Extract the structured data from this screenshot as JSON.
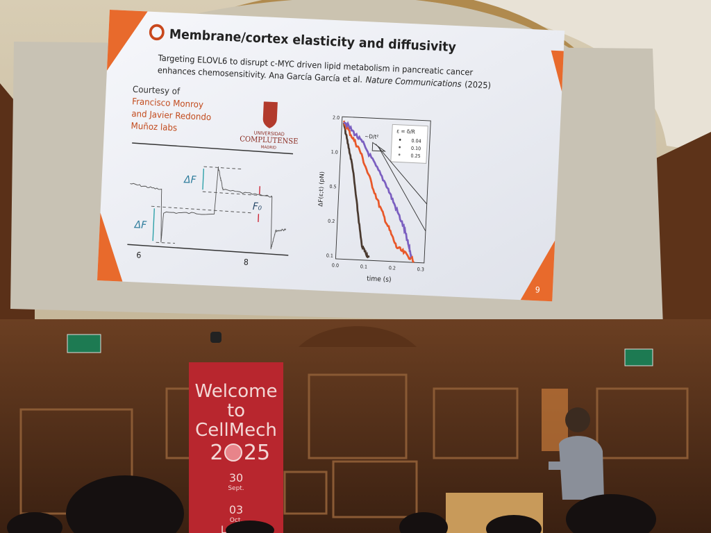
{
  "slide": {
    "title": "Membrane/cortex elasticity and diffusivity",
    "subtitle_line1": "Targeting ELOVL6 to disrupt c-MYC driven lipid metabolism in pancreatic cancer",
    "subtitle_line2": "enhances chemosensitivity. Ana García García et al.",
    "journal": "Nature Communications",
    "year": "(2025)",
    "courtesy": [
      "Courtesy of",
      "Francisco Monroy",
      "and Javier Redondo",
      "Muñoz labs"
    ],
    "logo": [
      "UNIVERSIDAD",
      "COMPLUTENSE",
      "MADRID"
    ],
    "trace_plot": {
      "labels": [
        "ΔF",
        "ΔF",
        "F₀"
      ],
      "xticks": [
        "6",
        "8"
      ]
    },
    "decay_plot": {
      "y_label": "ΔF(ε;t) (pN)",
      "x_label": "time (s)",
      "yticks": [
        "2.0",
        "1.0",
        "0.5",
        "0.2",
        "0.1"
      ],
      "xticks": [
        "0.0",
        "0.1",
        "0.2",
        "0.3"
      ],
      "legend_title": "ε = δ/R",
      "legend_entries": [
        "0.04",
        "0.10",
        "0.25"
      ],
      "slope_label": "~D/t²"
    },
    "slide_number": "9"
  },
  "banner": {
    "lines": [
      "Welcome",
      "to",
      "CellMech"
    ],
    "year_left": "2",
    "year_right": "25",
    "dates": [
      "30",
      "Sept.",
      "03",
      "Oct."
    ],
    "footer": "Le"
  }
}
